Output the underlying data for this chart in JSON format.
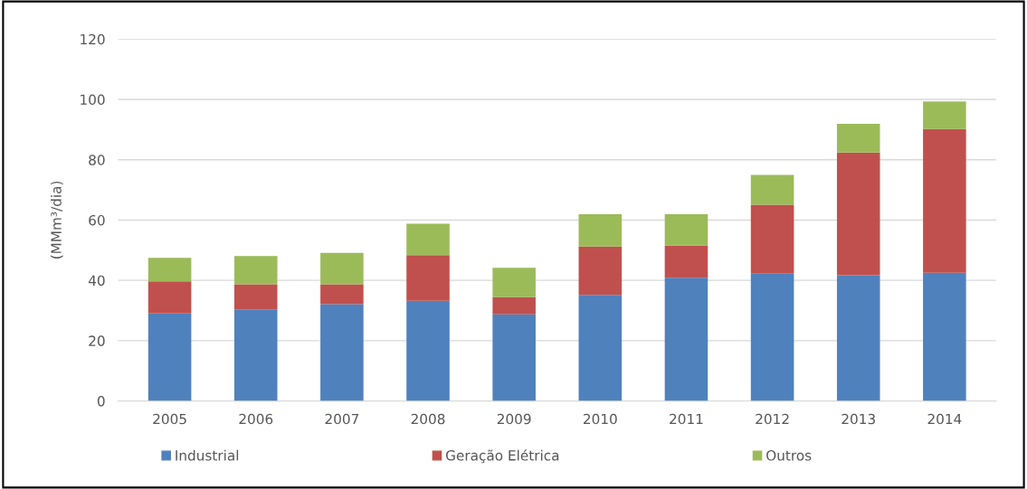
{
  "chart_data": {
    "type": "bar",
    "stacked": true,
    "ylabel": "(MMm³/dia)",
    "categories": [
      "2005",
      "2006",
      "2007",
      "2008",
      "2009",
      "2010",
      "2011",
      "2012",
      "2013",
      "2014"
    ],
    "series": [
      {
        "name": "Industrial",
        "color": "#4f81bd",
        "values": [
          29.0,
          30.4,
          32.1,
          33.2,
          28.7,
          35.2,
          40.9,
          42.2,
          41.7,
          42.5
        ]
      },
      {
        "name": "Geração Elétrica",
        "color": "#c0504d",
        "values": [
          10.7,
          8.3,
          6.6,
          15.2,
          5.7,
          16.0,
          10.6,
          22.9,
          40.7,
          47.7
        ]
      },
      {
        "name": "Outros",
        "color": "#9bbb59",
        "values": [
          7.8,
          9.4,
          10.4,
          10.4,
          9.8,
          10.7,
          10.4,
          9.9,
          9.5,
          9.1
        ]
      }
    ],
    "ylim": [
      0,
      120
    ],
    "yticks": [
      0,
      20,
      40,
      60,
      80,
      100,
      120
    ],
    "grid": "y",
    "legend": "bottom"
  }
}
